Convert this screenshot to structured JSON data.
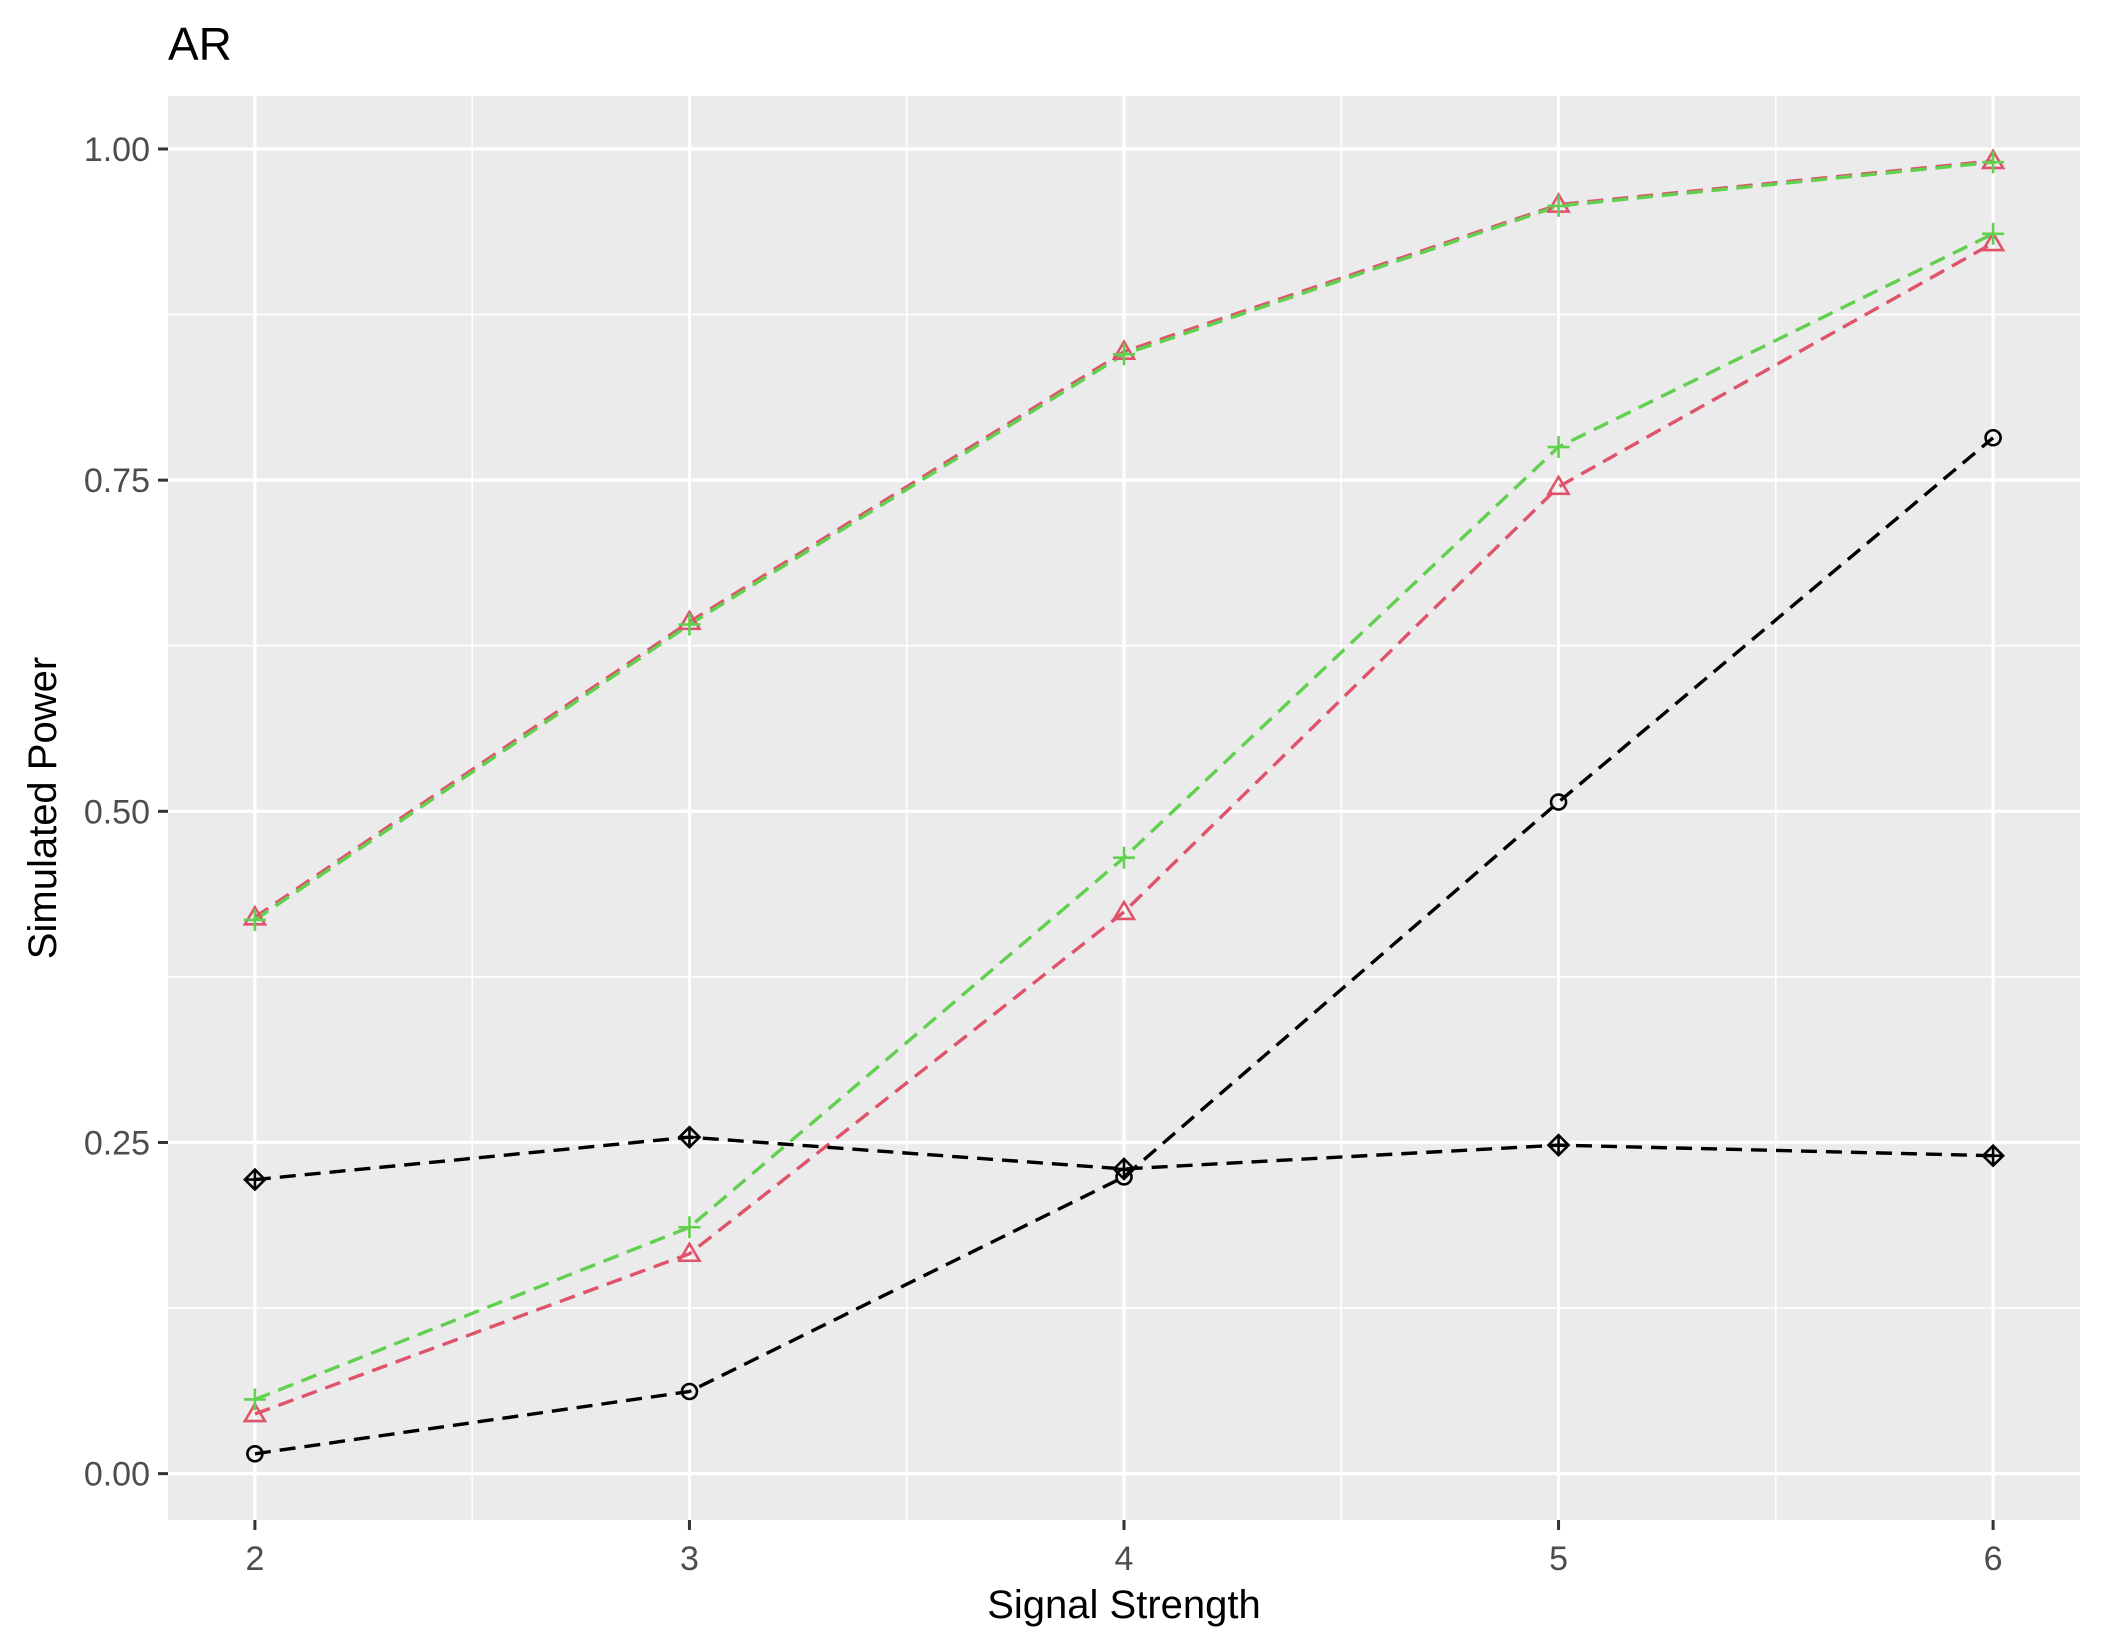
{
  "chart_data": {
    "type": "line",
    "title": "AR",
    "xlabel": "Signal Strength",
    "ylabel": "Simulated Power",
    "x": [
      2,
      3,
      4,
      5,
      6
    ],
    "x_ticks": [
      "2",
      "3",
      "4",
      "5",
      "6"
    ],
    "y_ticks": [
      "0.00",
      "0.25",
      "0.50",
      "0.75",
      "1.00"
    ],
    "xlim": [
      1.8,
      6.2
    ],
    "ylim": [
      -0.035,
      1.04
    ],
    "grid": true,
    "legend": "none",
    "series": [
      {
        "values": [
          0.42,
          0.643,
          0.847,
          0.958,
          0.991
        ],
        "color": "#DF536B",
        "marker": "triangle"
      },
      {
        "values": [
          0.418,
          0.641,
          0.845,
          0.957,
          0.99
        ],
        "color": "#61D04F",
        "marker": "plus"
      },
      {
        "values": [
          0.045,
          0.166,
          0.424,
          0.745,
          0.929
        ],
        "color": "#DF536B",
        "marker": "triangle"
      },
      {
        "values": [
          0.056,
          0.186,
          0.465,
          0.775,
          0.936
        ],
        "color": "#61D04F",
        "marker": "plus"
      },
      {
        "values": [
          0.015,
          0.062,
          0.224,
          0.507,
          0.782
        ],
        "color": "#000000",
        "marker": "circle"
      },
      {
        "values": [
          0.222,
          0.254,
          0.23,
          0.248,
          0.24
        ],
        "color": "#000000",
        "marker": "diamond-plus"
      }
    ]
  }
}
